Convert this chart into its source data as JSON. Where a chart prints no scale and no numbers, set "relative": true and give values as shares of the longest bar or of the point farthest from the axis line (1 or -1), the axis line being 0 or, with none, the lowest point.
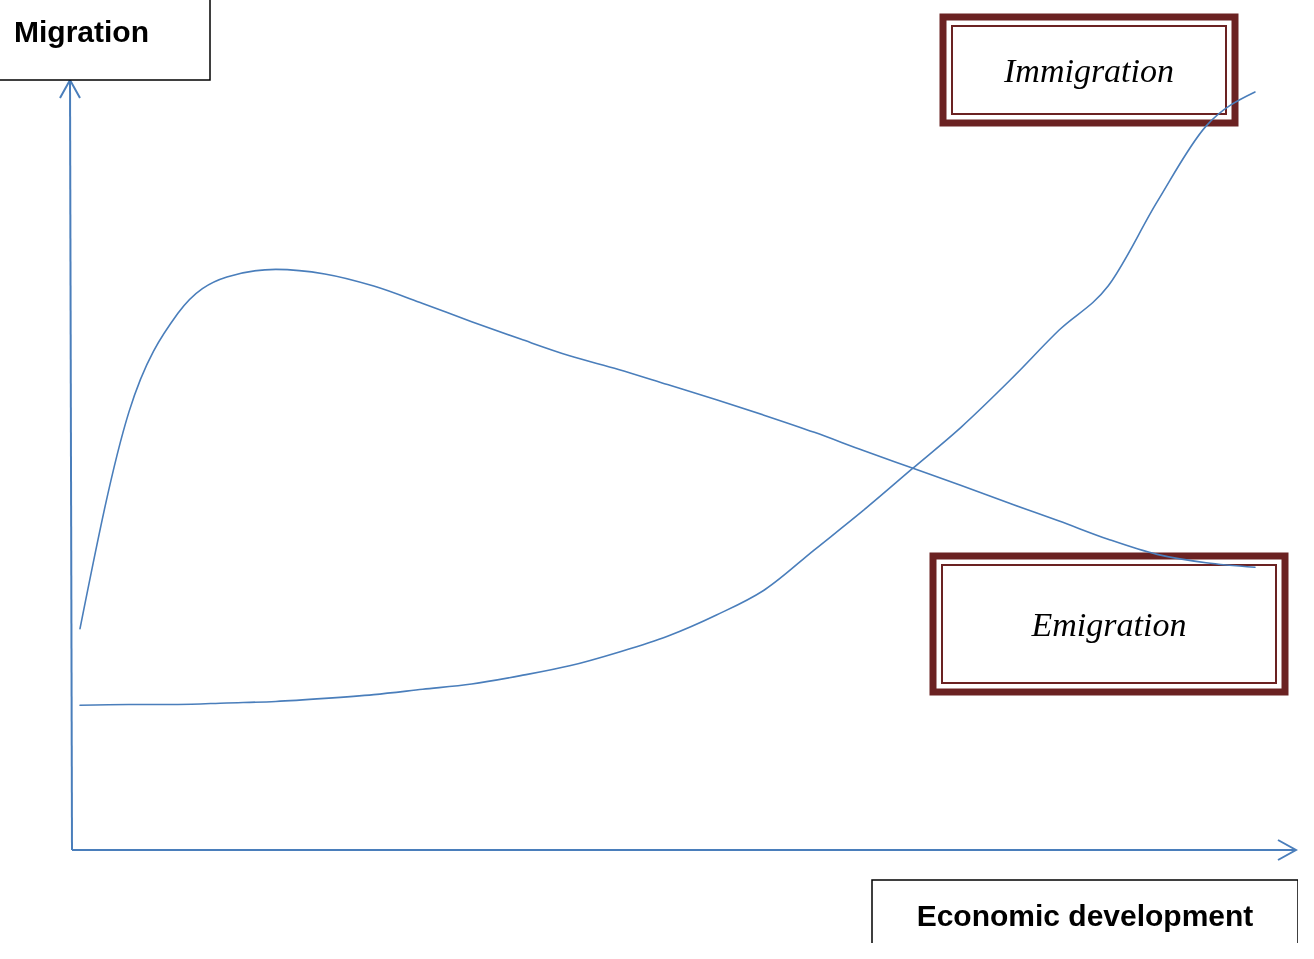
{
  "chart_data": {
    "type": "line",
    "xlabel": "Economic development",
    "ylabel": "Migration",
    "relative": true,
    "categories": [
      null,
      null,
      null,
      null,
      null,
      null,
      null,
      null,
      null,
      null,
      null,
      null,
      null,
      null,
      null,
      null,
      null,
      null,
      null,
      null,
      null,
      null,
      null,
      null,
      null
    ],
    "series": [
      {
        "name": "Immigration",
        "color": "#4a7ebb",
        "values": [
          0.191,
          0.192,
          0.192,
          0.194,
          0.196,
          0.2,
          0.205,
          0.212,
          0.219,
          0.23,
          0.243,
          0.261,
          0.282,
          0.31,
          0.344,
          0.396,
          0.448,
          0.503,
          0.558,
          0.62,
          0.686,
          0.744,
          0.855,
          0.955,
          1.0
        ]
      },
      {
        "name": "Emigration",
        "color": "#4a7ebb",
        "values": [
          0.292,
          0.578,
          0.708,
          0.756,
          0.766,
          0.76,
          0.744,
          0.721,
          0.697,
          0.674,
          0.652,
          0.634,
          0.614,
          0.594,
          0.573,
          0.551,
          0.527,
          0.504,
          0.481,
          0.457,
          0.434,
          0.41,
          0.39,
          0.379,
          0.373
        ]
      }
    ]
  }
}
